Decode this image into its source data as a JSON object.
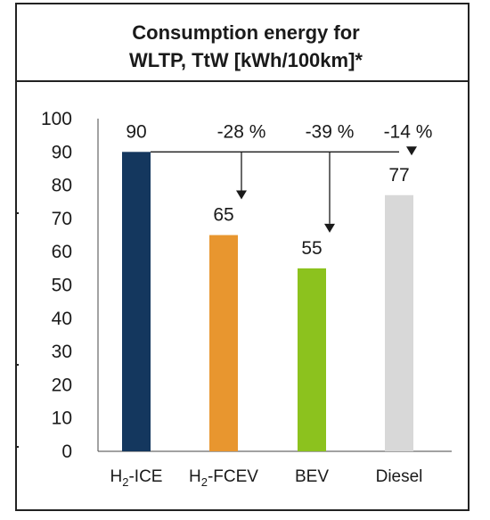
{
  "chart_data": {
    "type": "bar",
    "title_line1": "Consumption energy for",
    "title_line2": "WLTP, TtW [kWh/100km]*",
    "categories": [
      {
        "base": "H",
        "sub": "2",
        "rest": "-ICE"
      },
      {
        "base": "H",
        "sub": "2",
        "rest": "-FCEV"
      },
      {
        "base": "BEV",
        "sub": "",
        "rest": ""
      },
      {
        "base": "Diesel",
        "sub": "",
        "rest": ""
      }
    ],
    "values": [
      90,
      65,
      55,
      77
    ],
    "value_labels": [
      "90",
      "65",
      "55",
      "77"
    ],
    "colors": [
      "#14375e",
      "#e8962f",
      "#8cc21e",
      "#d8d8d8"
    ],
    "deltas": [
      {
        "target_index": 1,
        "label": "-28 %"
      },
      {
        "target_index": 2,
        "label": "-39 %"
      },
      {
        "target_index": 3,
        "label": "-14 %"
      }
    ],
    "reference_index": 0,
    "ylim": [
      0,
      100
    ],
    "yticks": [
      "0",
      "10",
      "20",
      "30",
      "40",
      "50",
      "60",
      "70",
      "80",
      "90",
      "100"
    ],
    "xlabel": "",
    "ylabel": "",
    "grid": false,
    "legend": "none"
  }
}
